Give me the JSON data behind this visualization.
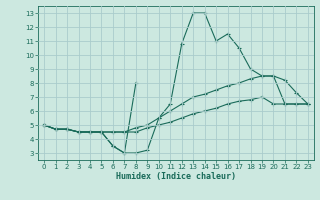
{
  "title": "",
  "xlabel": "Humidex (Indice chaleur)",
  "background_color": "#cce8e0",
  "grid_color": "#aacccc",
  "line_color": "#1a6b5a",
  "xlim": [
    -0.5,
    23.5
  ],
  "ylim": [
    2.5,
    13.5
  ],
  "xticks": [
    0,
    1,
    2,
    3,
    4,
    5,
    6,
    7,
    8,
    9,
    10,
    11,
    12,
    13,
    14,
    15,
    16,
    17,
    18,
    19,
    20,
    21,
    22,
    23
  ],
  "yticks": [
    3,
    4,
    5,
    6,
    7,
    8,
    9,
    10,
    11,
    12,
    13
  ],
  "line1_x": [
    0,
    1,
    2,
    3,
    4,
    5,
    6,
    7,
    8,
    9,
    10,
    11,
    12,
    13,
    14,
    15,
    16,
    17,
    18,
    19,
    20,
    21,
    22,
    23
  ],
  "line1_y": [
    5,
    4.7,
    4.7,
    4.5,
    4.5,
    4.5,
    3.5,
    3.0,
    3.0,
    3.2,
    5.5,
    6.5,
    10.8,
    13.0,
    13.0,
    11.0,
    11.5,
    10.5,
    9.0,
    8.5,
    8.5,
    8.2,
    7.3,
    6.5
  ],
  "line2_x": [
    0,
    1,
    2,
    3,
    4,
    5,
    6,
    7,
    8
  ],
  "line2_y": [
    5,
    4.7,
    4.7,
    4.5,
    4.5,
    4.5,
    3.5,
    3.0,
    8.0
  ],
  "line3_x": [
    0,
    1,
    2,
    3,
    4,
    5,
    6,
    7,
    8,
    9,
    10,
    11,
    12,
    13,
    14,
    15,
    16,
    17,
    18,
    19,
    20,
    21,
    22,
    23
  ],
  "line3_y": [
    5,
    4.7,
    4.7,
    4.5,
    4.5,
    4.5,
    4.5,
    4.5,
    4.8,
    5.0,
    5.5,
    6.0,
    6.5,
    7.0,
    7.2,
    7.5,
    7.8,
    8.0,
    8.3,
    8.5,
    8.5,
    6.5,
    6.5,
    6.5
  ],
  "line4_x": [
    0,
    1,
    2,
    3,
    4,
    5,
    6,
    7,
    8,
    9,
    10,
    11,
    12,
    13,
    14,
    15,
    16,
    17,
    18,
    19,
    20,
    21,
    22,
    23
  ],
  "line4_y": [
    5,
    4.7,
    4.7,
    4.5,
    4.5,
    4.5,
    4.5,
    4.5,
    4.5,
    4.8,
    5.0,
    5.2,
    5.5,
    5.8,
    6.0,
    6.2,
    6.5,
    6.7,
    6.8,
    7.0,
    6.5,
    6.5,
    6.5,
    6.5
  ]
}
